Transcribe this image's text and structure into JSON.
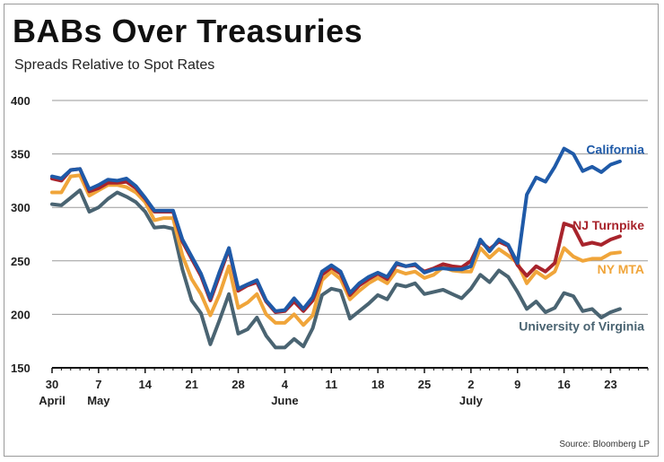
{
  "title": "BABs Over Treasuries",
  "subtitle": "Spreads Relative to Spot Rates",
  "source": "Source: Bloomberg LP",
  "chart_data": {
    "type": "line",
    "title": "BABs Over Treasuries",
    "subtitle": "Spreads Relative to Spot Rates",
    "xlabel": "",
    "ylabel": "",
    "ylim": [
      150,
      400
    ],
    "yticks": [
      150,
      200,
      250,
      300,
      350,
      400
    ],
    "grid": true,
    "x_index_range": [
      0,
      64
    ],
    "xticks": [
      {
        "i": 0,
        "label": "30"
      },
      {
        "i": 5,
        "label": "7"
      },
      {
        "i": 10,
        "label": "14"
      },
      {
        "i": 15,
        "label": "21"
      },
      {
        "i": 20,
        "label": "28"
      },
      {
        "i": 25,
        "label": "4"
      },
      {
        "i": 30,
        "label": "11"
      },
      {
        "i": 35,
        "label": "18"
      },
      {
        "i": 40,
        "label": "25"
      },
      {
        "i": 45,
        "label": "2"
      },
      {
        "i": 50,
        "label": "9"
      },
      {
        "i": 55,
        "label": "16"
      },
      {
        "i": 60,
        "label": "23"
      }
    ],
    "month_labels": [
      {
        "i": 0,
        "label": "April"
      },
      {
        "i": 5,
        "label": "May"
      },
      {
        "i": 25,
        "label": "June"
      },
      {
        "i": 45,
        "label": "July"
      }
    ],
    "series": [
      {
        "name": "University of Virginia",
        "color": "#4a6472",
        "values": [
          303,
          302,
          309,
          316,
          296,
          300,
          308,
          314,
          310,
          305,
          296,
          281,
          282,
          280,
          242,
          213,
          201,
          172,
          195,
          219,
          182,
          186,
          197,
          180,
          169,
          169,
          177,
          170,
          187,
          218,
          224,
          222,
          196,
          203,
          210,
          218,
          214,
          228,
          226,
          229,
          219,
          221,
          223,
          219,
          215,
          224,
          237,
          230,
          241,
          235,
          221,
          205,
          212,
          202,
          206,
          220,
          217,
          203,
          205,
          197,
          202,
          205
        ]
      },
      {
        "name": "NY MTA",
        "color": "#f0a53a",
        "values": [
          314,
          314,
          329,
          330,
          311,
          316,
          321,
          321,
          319,
          314,
          305,
          288,
          290,
          290,
          255,
          233,
          219,
          199,
          219,
          245,
          206,
          211,
          219,
          200,
          192,
          192,
          200,
          190,
          199,
          232,
          240,
          233,
          214,
          222,
          229,
          234,
          229,
          241,
          238,
          240,
          234,
          237,
          244,
          241,
          240,
          240,
          262,
          253,
          261,
          255,
          248,
          229,
          240,
          234,
          240,
          262,
          254,
          250,
          252,
          252,
          257,
          258
        ]
      },
      {
        "name": "NJ Turnpike",
        "color": "#a8242c",
        "values": [
          327,
          325,
          335,
          336,
          315,
          318,
          323,
          323,
          324,
          318,
          308,
          296,
          296,
          296,
          268,
          252,
          236,
          213,
          237,
          261,
          222,
          227,
          230,
          212,
          202,
          203,
          212,
          203,
          213,
          237,
          244,
          238,
          218,
          227,
          233,
          238,
          233,
          247,
          245,
          246,
          240,
          243,
          247,
          245,
          244,
          250,
          268,
          261,
          268,
          264,
          246,
          236,
          245,
          240,
          248,
          285,
          282,
          265,
          267,
          265,
          270,
          273
        ]
      },
      {
        "name": "California",
        "color": "#1f5aa8",
        "values": [
          329,
          327,
          335,
          336,
          317,
          321,
          326,
          325,
          327,
          320,
          309,
          297,
          297,
          297,
          270,
          254,
          238,
          215,
          240,
          262,
          224,
          228,
          232,
          213,
          203,
          204,
          215,
          205,
          216,
          240,
          246,
          240,
          220,
          229,
          235,
          239,
          235,
          248,
          245,
          247,
          239,
          242,
          243,
          242,
          242,
          245,
          270,
          259,
          270,
          265,
          248,
          312,
          328,
          324,
          338,
          355,
          350,
          334,
          338,
          333,
          340,
          343
        ]
      }
    ],
    "series_labels": [
      {
        "name": "California",
        "color": "#1f5aa8"
      },
      {
        "name": "NJ Turnpike",
        "color": "#a8242c"
      },
      {
        "name": "NY MTA",
        "color": "#f0a53a"
      },
      {
        "name": "University of Virginia",
        "color": "#4a6472"
      }
    ]
  }
}
